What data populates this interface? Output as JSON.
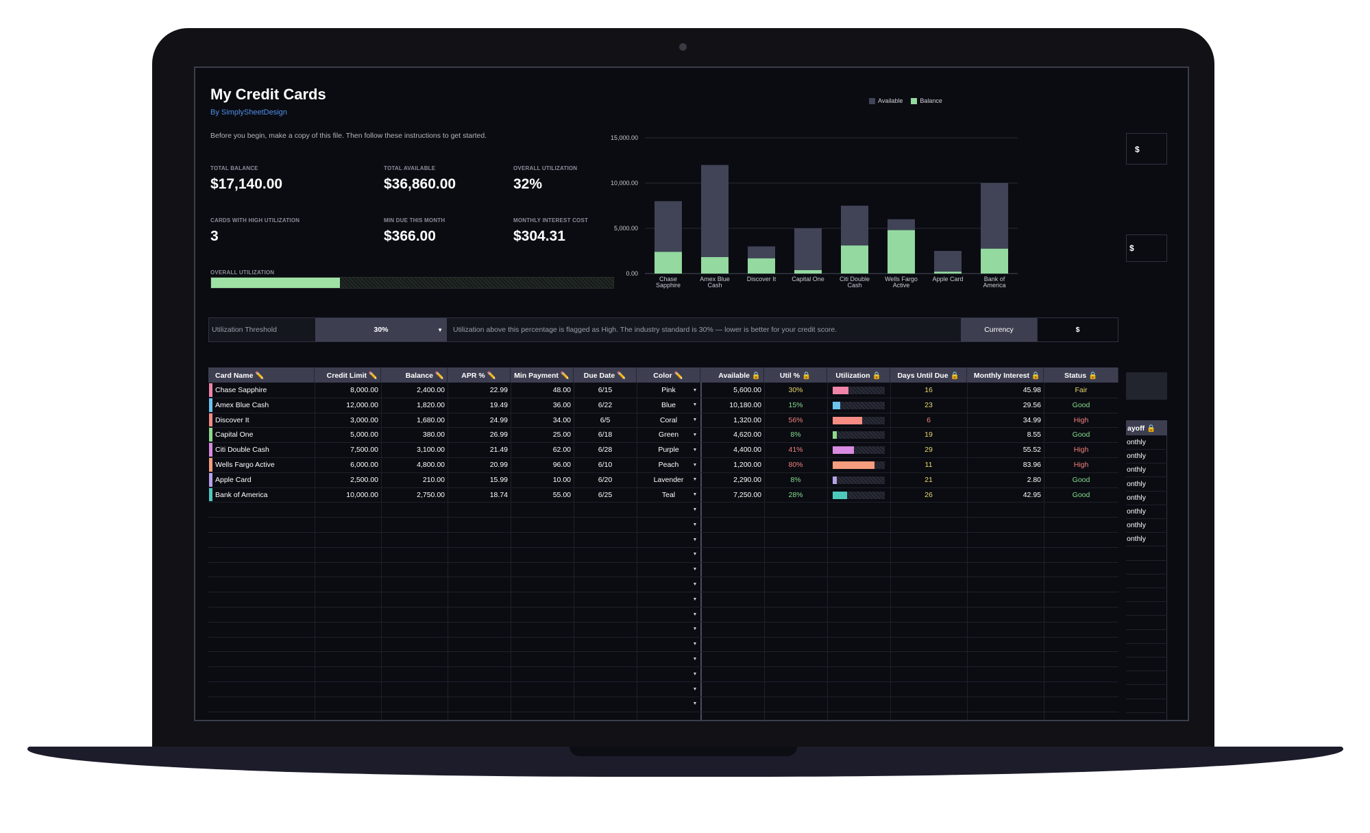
{
  "header": {
    "title": "My Credit Cards",
    "byline": "By SimplySheetDesign",
    "instructions": "Before you begin, make a copy of this file. Then follow these instructions to get started."
  },
  "stats": {
    "total_balance": {
      "label": "TOTAL BALANCE",
      "value": "$17,140.00"
    },
    "total_available": {
      "label": "TOTAL AVAILABLE",
      "value": "$36,860.00"
    },
    "overall_utilization": {
      "label": "OVERALL UTILIZATION",
      "value": "32%"
    },
    "high_util_cards": {
      "label": "CARDS WITH HIGH UTILIZATION",
      "value": "3"
    },
    "min_due": {
      "label": "MIN DUE THIS MONTH",
      "value": "$366.00"
    },
    "interest_cost": {
      "label": "MONTHLY INTEREST COST",
      "value": "$304.31"
    }
  },
  "utilization_bar": {
    "label": "OVERALL UTILIZATION",
    "fraction": 0.32
  },
  "chart_data": {
    "type": "bar",
    "stacked": true,
    "categories": [
      "Chase Sapphire",
      "Amex Blue Cash",
      "Discover It",
      "Capital One",
      "Citi Double Cash",
      "Wells Fargo Active",
      "Apple Card",
      "Bank of America"
    ],
    "series": [
      {
        "name": "Available",
        "color": "#414357",
        "values": [
          5600,
          10180,
          1320,
          4620,
          4400,
          1200,
          2290,
          7250
        ]
      },
      {
        "name": "Balance",
        "color": "#93d9a0",
        "values": [
          2400,
          1820,
          1680,
          380,
          3100,
          4800,
          210,
          2750
        ]
      }
    ],
    "y_ticks": [
      "15,000.00",
      "10,000.00",
      "5,000.00",
      "0.00"
    ],
    "ylim": [
      0,
      15000
    ],
    "grid": true,
    "legend_position": "top"
  },
  "threshold_row": {
    "label": "Utilization Threshold",
    "value": "30%",
    "note": "Utilization above this percentage is flagged as High. The industry standard is 30% — lower is better for your credit score.",
    "currency_label": "Currency",
    "currency_value": "$"
  },
  "table": {
    "headers": [
      "Card Name ✏️",
      "Credit Limit ✏️",
      "Balance ✏️",
      "APR % ✏️",
      "Min Payment ✏️",
      "Due Date ✏️",
      "Color ✏️",
      "Available 🔒",
      "Util % 🔒",
      "Utilization 🔒",
      "Days Until Due 🔒",
      "Monthly Interest 🔒",
      "Status 🔒"
    ],
    "rows": [
      {
        "swatch": "#f084a9",
        "name": "Chase Sapphire",
        "limit": "8,000.00",
        "balance": "2,400.00",
        "apr": "22.99",
        "min": "48.00",
        "due": "6/15",
        "color": "Pink",
        "available": "5,600.00",
        "util": "30%",
        "util_frac": 0.3,
        "days": "16",
        "interest": "45.98",
        "status": "Fair",
        "util_color": "#e7d86a",
        "days_color": "#e7d86a",
        "status_color": "#e7d86a"
      },
      {
        "swatch": "#6cc3ec",
        "name": "Amex Blue Cash",
        "limit": "12,000.00",
        "balance": "1,820.00",
        "apr": "19.49",
        "min": "36.00",
        "due": "6/22",
        "color": "Blue",
        "available": "10,180.00",
        "util": "15%",
        "util_frac": 0.15,
        "days": "23",
        "interest": "29.56",
        "status": "Good",
        "util_color": "#84dc8e",
        "days_color": "#e7d86a",
        "status_color": "#84dc8e"
      },
      {
        "swatch": "#f58d84",
        "name": "Discover It",
        "limit": "3,000.00",
        "balance": "1,680.00",
        "apr": "24.99",
        "min": "34.00",
        "due": "6/5",
        "color": "Coral",
        "available": "1,320.00",
        "util": "56%",
        "util_frac": 0.56,
        "days": "6",
        "interest": "34.99",
        "status": "High",
        "util_color": "#f2827b",
        "days_color": "#f2827b",
        "status_color": "#f2827b"
      },
      {
        "swatch": "#8ed98e",
        "name": "Capital One",
        "limit": "5,000.00",
        "balance": "380.00",
        "apr": "26.99",
        "min": "25.00",
        "due": "6/18",
        "color": "Green",
        "available": "4,620.00",
        "util": "8%",
        "util_frac": 0.08,
        "days": "19",
        "interest": "8.55",
        "status": "Good",
        "util_color": "#84dc8e",
        "days_color": "#e7d86a",
        "status_color": "#84dc8e"
      },
      {
        "swatch": "#d88be0",
        "name": "Citi Double Cash",
        "limit": "7,500.00",
        "balance": "3,100.00",
        "apr": "21.49",
        "min": "62.00",
        "due": "6/28",
        "color": "Purple",
        "available": "4,400.00",
        "util": "41%",
        "util_frac": 0.41,
        "days": "29",
        "interest": "55.52",
        "status": "High",
        "util_color": "#f2827b",
        "days_color": "#e7d86a",
        "status_color": "#f2827b"
      },
      {
        "swatch": "#f59d7e",
        "name": "Wells Fargo Active",
        "limit": "6,000.00",
        "balance": "4,800.00",
        "apr": "20.99",
        "min": "96.00",
        "due": "6/10",
        "color": "Peach",
        "available": "1,200.00",
        "util": "80%",
        "util_frac": 0.8,
        "days": "11",
        "interest": "83.96",
        "status": "High",
        "util_color": "#f2827b",
        "days_color": "#e7d86a",
        "status_color": "#f2827b"
      },
      {
        "swatch": "#b6a2e8",
        "name": "Apple Card",
        "limit": "2,500.00",
        "balance": "210.00",
        "apr": "15.99",
        "min": "10.00",
        "due": "6/20",
        "color": "Lavender",
        "available": "2,290.00",
        "util": "8%",
        "util_frac": 0.08,
        "days": "21",
        "interest": "2.80",
        "status": "Good",
        "util_color": "#84dc8e",
        "days_color": "#e7d86a",
        "status_color": "#84dc8e"
      },
      {
        "swatch": "#4fc8bc",
        "name": "Bank of America",
        "limit": "10,000.00",
        "balance": "2,750.00",
        "apr": "18.74",
        "min": "55.00",
        "due": "6/25",
        "color": "Teal",
        "available": "7,250.00",
        "util": "28%",
        "util_frac": 0.28,
        "days": "26",
        "interest": "42.95",
        "status": "Good",
        "util_color": "#84dc8e",
        "days_color": "#e7d86a",
        "status_color": "#84dc8e"
      }
    ]
  },
  "right_panel": {
    "currency_1": "$",
    "currency_2": "$",
    "header_fragment": "ayoff 🔒",
    "items": [
      "onthly",
      "onthly",
      "onthly",
      "onthly",
      "onthly",
      "onthly",
      "onthly",
      "onthly"
    ]
  }
}
